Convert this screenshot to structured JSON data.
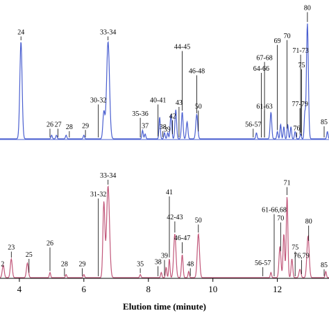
{
  "chart_data": {
    "type": "line",
    "xlabel": "Elution time (minute)",
    "xlim": [
      3.4,
      13.6
    ],
    "x_ticks": [
      4,
      6,
      8,
      10,
      12
    ],
    "x_tick_labels": [
      "4",
      "6",
      "8",
      "10",
      "12"
    ],
    "top_ylim": [
      0,
      1.0
    ],
    "bottom_ylim": [
      0,
      1.0
    ],
    "series": [
      {
        "color": "#4a5fd0",
        "peaks": [
          {
            "t": 4.05,
            "h": 0.8,
            "w": 0.035,
            "label": "24"
          },
          {
            "t": 5.0,
            "h": 0.03,
            "w": 0.02,
            "label": "26"
          },
          {
            "t": 5.15,
            "h": 0.03,
            "w": 0.02,
            "label": "27"
          },
          {
            "t": 5.45,
            "h": 0.03,
            "w": 0.02,
            "label": "28"
          },
          {
            "t": 6.0,
            "h": 0.03,
            "w": 0.02,
            "label": "29"
          },
          {
            "t": 6.62,
            "h": 0.22,
            "w": 0.03,
            "label": "30-32"
          },
          {
            "t": 6.75,
            "h": 0.8,
            "w": 0.045,
            "label": "33-34"
          },
          {
            "t": 7.82,
            "h": 0.07,
            "w": 0.02,
            "label": "35-36"
          },
          {
            "t": 7.9,
            "h": 0.04,
            "w": 0.02,
            "label": "37"
          },
          {
            "t": 8.35,
            "h": 0.18,
            "w": 0.02,
            "label": "40-41"
          },
          {
            "t": 8.5,
            "h": 0.05,
            "w": 0.02,
            "label": "38"
          },
          {
            "t": 8.6,
            "h": 0.05,
            "w": 0.02,
            "label": "39"
          },
          {
            "t": 8.7,
            "h": 0.2,
            "w": 0.025,
            "label": "42"
          },
          {
            "t": 8.85,
            "h": 0.24,
            "w": 0.025,
            "label": "43"
          },
          {
            "t": 9.05,
            "h": 0.22,
            "w": 0.025,
            "label": "44-45"
          },
          {
            "t": 9.2,
            "h": 0.14,
            "w": 0.025,
            "label": "46-48"
          },
          {
            "t": 9.5,
            "h": 0.2,
            "w": 0.03,
            "label": "50"
          },
          {
            "t": 11.35,
            "h": 0.05,
            "w": 0.02,
            "label": "56-57"
          },
          {
            "t": 11.8,
            "h": 0.22,
            "w": 0.025,
            "label": "61-63"
          },
          {
            "t": 12.0,
            "h": 0.06,
            "w": 0.02,
            "label": "64-66"
          },
          {
            "t": 12.1,
            "h": 0.12,
            "w": 0.02,
            "label": "67-68"
          },
          {
            "t": 12.2,
            "h": 0.1,
            "w": 0.02,
            "label": "69"
          },
          {
            "t": 12.32,
            "h": 0.12,
            "w": 0.02,
            "label": "70"
          },
          {
            "t": 12.42,
            "h": 0.1,
            "w": 0.02,
            "label": "71-73"
          },
          {
            "t": 12.55,
            "h": 0.06,
            "w": 0.02,
            "label": "75"
          },
          {
            "t": 12.72,
            "h": 0.04,
            "w": 0.02,
            "label": "76"
          },
          {
            "t": 12.85,
            "h": 0.2,
            "w": 0.02,
            "label": "77-79"
          },
          {
            "t": 12.93,
            "h": 0.95,
            "w": 0.03,
            "label": "80"
          },
          {
            "t": 13.55,
            "h": 0.06,
            "w": 0.02,
            "label": "85"
          }
        ]
      },
      {
        "color": "#c1577a",
        "peaks": [
          {
            "t": 3.5,
            "h": 0.12,
            "w": 0.03,
            "label": "2"
          },
          {
            "t": 3.75,
            "h": 0.18,
            "w": 0.03,
            "label": "23"
          },
          {
            "t": 4.25,
            "h": 0.14,
            "w": 0.03,
            "label": "25"
          },
          {
            "t": 4.95,
            "h": 0.05,
            "w": 0.02,
            "label": "26"
          },
          {
            "t": 5.45,
            "h": 0.03,
            "w": 0.02,
            "label": "28"
          },
          {
            "t": 6.0,
            "h": 0.03,
            "w": 0.02,
            "label": "29"
          },
          {
            "t": 6.62,
            "h": 0.72,
            "w": 0.03,
            "label": "31-32"
          },
          {
            "t": 6.75,
            "h": 0.88,
            "w": 0.045,
            "label": "33-34"
          },
          {
            "t": 7.75,
            "h": 0.03,
            "w": 0.02,
            "label": "35"
          },
          {
            "t": 8.4,
            "h": 0.05,
            "w": 0.02,
            "label": "38"
          },
          {
            "t": 8.55,
            "h": 0.1,
            "w": 0.02,
            "label": "39"
          },
          {
            "t": 8.65,
            "h": 0.18,
            "w": 0.02,
            "label": "41"
          },
          {
            "t": 8.82,
            "h": 0.42,
            "w": 0.035,
            "label": "42-43"
          },
          {
            "t": 9.05,
            "h": 0.22,
            "w": 0.025,
            "label": "46-47"
          },
          {
            "t": 9.25,
            "h": 0.06,
            "w": 0.02,
            "label": "48"
          },
          {
            "t": 9.55,
            "h": 0.42,
            "w": 0.035,
            "label": "50"
          },
          {
            "t": 11.8,
            "h": 0.05,
            "w": 0.02,
            "label": "56-57"
          },
          {
            "t": 12.08,
            "h": 0.3,
            "w": 0.03,
            "label": "61-66,68"
          },
          {
            "t": 12.2,
            "h": 0.42,
            "w": 0.025,
            "label": "70"
          },
          {
            "t": 12.3,
            "h": 0.78,
            "w": 0.025,
            "label": "71"
          },
          {
            "t": 12.45,
            "h": 0.18,
            "w": 0.025,
            "label": "75"
          },
          {
            "t": 12.7,
            "h": 0.08,
            "w": 0.03,
            "label": "76,79"
          },
          {
            "t": 12.95,
            "h": 0.4,
            "w": 0.035,
            "label": "80"
          },
          {
            "t": 13.5,
            "h": 0.06,
            "w": 0.02,
            "label": "85"
          }
        ]
      }
    ]
  },
  "labels": {
    "top": [
      {
        "text": "24",
        "t": 4.05,
        "lv": 0.86
      },
      {
        "text": "33-34",
        "t": 6.75,
        "lv": 0.86
      },
      {
        "text": "30-32",
        "t": 6.45,
        "lv": 0.3
      },
      {
        "text": "26",
        "t": 4.95,
        "lv": 0.1
      },
      {
        "text": "27",
        "t": 5.2,
        "lv": 0.1
      },
      {
        "text": "28",
        "t": 5.55,
        "lv": 0.08
      },
      {
        "text": "29",
        "t": 6.05,
        "lv": 0.09
      },
      {
        "text": "35-36",
        "t": 7.75,
        "lv": 0.19
      },
      {
        "text": "37",
        "t": 7.9,
        "lv": 0.09
      },
      {
        "text": "40-41",
        "t": 8.3,
        "lv": 0.3
      },
      {
        "text": "38",
        "t": 8.45,
        "lv": 0.08
      },
      {
        "text": "39",
        "t": 8.58,
        "lv": 0.06
      },
      {
        "text": "42",
        "t": 8.75,
        "lv": 0.17
      },
      {
        "text": "43",
        "t": 8.95,
        "lv": 0.28
      },
      {
        "text": "44-45",
        "t": 9.05,
        "lv": 0.74
      },
      {
        "text": "46-48",
        "t": 9.5,
        "lv": 0.54
      },
      {
        "text": "50",
        "t": 9.55,
        "lv": 0.25
      },
      {
        "text": "56-57",
        "t": 11.25,
        "lv": 0.1
      },
      {
        "text": "61-63",
        "t": 11.6,
        "lv": 0.25
      },
      {
        "text": "64-66",
        "t": 11.5,
        "lv": 0.56
      },
      {
        "text": "67-68",
        "t": 11.6,
        "lv": 0.65
      },
      {
        "text": "69",
        "t": 12.0,
        "lv": 0.79
      },
      {
        "text": "70",
        "t": 12.3,
        "lv": 0.83
      },
      {
        "text": "71-73",
        "t": 12.72,
        "lv": 0.71
      },
      {
        "text": "75",
        "t": 12.75,
        "lv": 0.59
      },
      {
        "text": "77-79",
        "t": 12.7,
        "lv": 0.27
      },
      {
        "text": "76",
        "t": 12.6,
        "lv": 0.07
      },
      {
        "text": "80",
        "t": 12.93,
        "lv": 1.06
      },
      {
        "text": "85",
        "t": 13.45,
        "lv": 0.12
      }
    ],
    "bottom": [
      {
        "text": "33-34",
        "t": 6.75,
        "lv": 0.96
      },
      {
        "text": "31-32",
        "t": 6.45,
        "lv": 0.78
      },
      {
        "text": "41",
        "t": 8.65,
        "lv": 0.8
      },
      {
        "text": "42-43",
        "t": 8.82,
        "lv": 0.56
      },
      {
        "text": "46-47",
        "t": 9.05,
        "lv": 0.36
      },
      {
        "text": "48",
        "t": 9.3,
        "lv": 0.11
      },
      {
        "text": "50",
        "t": 9.55,
        "lv": 0.53
      },
      {
        "text": "38",
        "t": 8.3,
        "lv": 0.13
      },
      {
        "text": "39",
        "t": 8.5,
        "lv": 0.19
      },
      {
        "text": "35",
        "t": 7.75,
        "lv": 0.11
      },
      {
        "text": "23",
        "t": 3.75,
        "lv": 0.27
      },
      {
        "text": "25",
        "t": 4.3,
        "lv": 0.2
      },
      {
        "text": "26",
        "t": 4.95,
        "lv": 0.31
      },
      {
        "text": "28",
        "t": 5.4,
        "lv": 0.11
      },
      {
        "text": "29",
        "t": 5.95,
        "lv": 0.11
      },
      {
        "text": "2",
        "t": 3.48,
        "lv": 0.11
      },
      {
        "text": "56-57",
        "t": 11.55,
        "lv": 0.12
      },
      {
        "text": "61-66,68",
        "t": 11.9,
        "lv": 0.63
      },
      {
        "text": "70",
        "t": 12.1,
        "lv": 0.55
      },
      {
        "text": "71",
        "t": 12.3,
        "lv": 0.89
      },
      {
        "text": "75",
        "t": 12.55,
        "lv": 0.27
      },
      {
        "text": "76,79",
        "t": 12.75,
        "lv": 0.19
      },
      {
        "text": "80",
        "t": 12.97,
        "lv": 0.52
      },
      {
        "text": "85",
        "t": 13.45,
        "lv": 0.1
      }
    ]
  }
}
